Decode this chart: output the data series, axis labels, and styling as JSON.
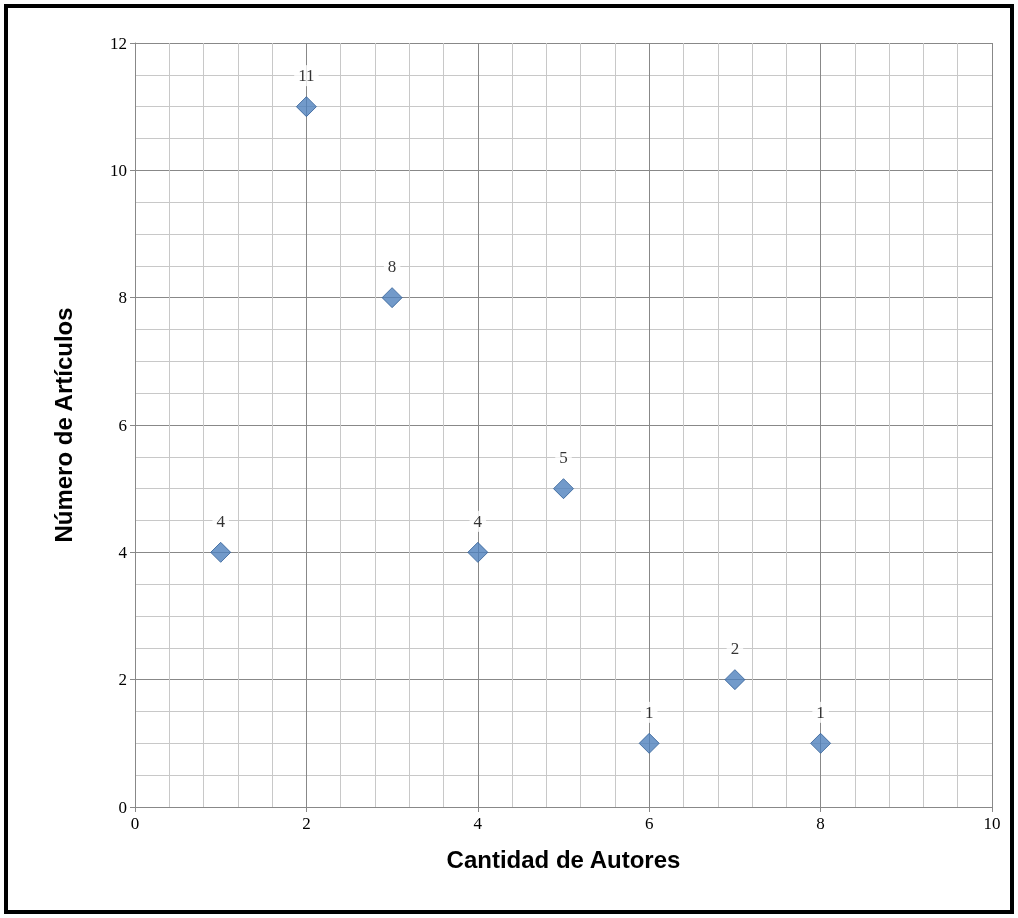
{
  "chart_data": {
    "type": "scatter",
    "xlabel": "Cantidad de Autores",
    "ylabel": "Número de Artículos",
    "x": [
      1,
      2,
      3,
      4,
      5,
      6,
      7,
      8
    ],
    "series": [
      {
        "color": "#4f81bd",
        "values": [
          4,
          11,
          8,
          4,
          5,
          1,
          2,
          1
        ]
      }
    ],
    "xlim": [
      0,
      10
    ],
    "xticks": [
      0,
      2,
      4,
      6,
      8,
      10
    ],
    "ylim": [
      0,
      12
    ],
    "yticks": [
      0,
      2,
      4,
      6,
      8,
      10,
      12
    ],
    "grid": true,
    "marker": "diamond",
    "data_labels": true
  }
}
